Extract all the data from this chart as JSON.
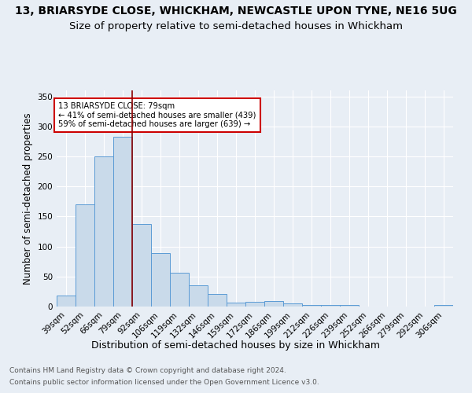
{
  "title1": "13, BRIARSYDE CLOSE, WHICKHAM, NEWCASTLE UPON TYNE, NE16 5UG",
  "title2": "Size of property relative to semi-detached houses in Whickham",
  "xlabel": "Distribution of semi-detached houses by size in Whickham",
  "ylabel": "Number of semi-detached properties",
  "footnote1": "Contains HM Land Registry data © Crown copyright and database right 2024.",
  "footnote2": "Contains public sector information licensed under the Open Government Licence v3.0.",
  "categories": [
    "39sqm",
    "52sqm",
    "66sqm",
    "79sqm",
    "92sqm",
    "106sqm",
    "119sqm",
    "132sqm",
    "146sqm",
    "159sqm",
    "172sqm",
    "186sqm",
    "199sqm",
    "212sqm",
    "226sqm",
    "239sqm",
    "252sqm",
    "266sqm",
    "279sqm",
    "292sqm",
    "306sqm"
  ],
  "values": [
    18,
    170,
    250,
    283,
    137,
    89,
    56,
    35,
    21,
    7,
    8,
    9,
    5,
    3,
    2,
    2,
    0,
    0,
    0,
    0,
    3
  ],
  "bar_color": "#c9daea",
  "bar_edge_color": "#5b9bd5",
  "highlight_x": "79sqm",
  "highlight_line_color": "#8B0000",
  "annotation_text": "13 BRIARSYDE CLOSE: 79sqm\n← 41% of semi-detached houses are smaller (439)\n59% of semi-detached houses are larger (639) →",
  "annotation_box_color": "#ffffff",
  "annotation_box_edge": "#cc0000",
  "ylim": [
    0,
    360
  ],
  "yticks": [
    0,
    50,
    100,
    150,
    200,
    250,
    300,
    350
  ],
  "background_color": "#e8eef5",
  "plot_background_color": "#e8eef5",
  "grid_color": "#ffffff",
  "title1_fontsize": 10,
  "title2_fontsize": 9.5,
  "xlabel_fontsize": 9,
  "ylabel_fontsize": 8.5,
  "tick_fontsize": 7.5,
  "footnote_fontsize": 6.5
}
